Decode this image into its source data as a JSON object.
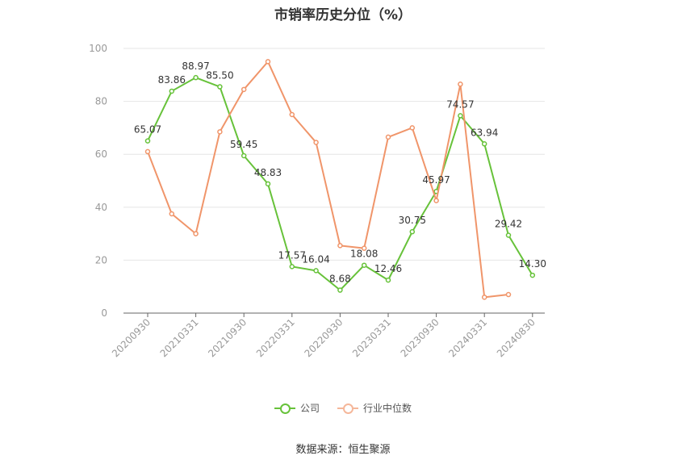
{
  "chart_data": {
    "type": "line",
    "title": "市销率历史分位（%）",
    "ylim": [
      0,
      100
    ],
    "yticks": [
      0,
      20,
      40,
      60,
      80,
      100
    ],
    "x": [
      "20200930",
      "20201231",
      "20210331",
      "20210630",
      "20210930",
      "20211231",
      "20220331",
      "20220630",
      "20220930",
      "20221231",
      "20230331",
      "20230630",
      "20230930",
      "20231231",
      "20240331",
      "20240630",
      "20240830"
    ],
    "xtick_labels": [
      "20200930",
      "20210331",
      "20210930",
      "20220331",
      "20220930",
      "20230331",
      "20230930",
      "20240331",
      "20240830"
    ],
    "series": [
      {
        "name": "公司",
        "color": "#67c23a",
        "values": [
          65.07,
          83.86,
          88.97,
          85.5,
          59.45,
          48.83,
          17.57,
          16.04,
          8.68,
          18.08,
          12.46,
          30.75,
          45.97,
          74.57,
          63.94,
          29.42,
          14.3
        ],
        "labels": [
          "65.07",
          "83.86",
          "88.97",
          "85.50",
          "59.45",
          "48.83",
          "17.57",
          "16.04",
          "8.68",
          "18.08",
          "12.46",
          "30.75",
          "45.97",
          "74.57",
          "63.94",
          "29.42",
          "14.30"
        ]
      },
      {
        "name": "行业中位数",
        "color": "#f0956a",
        "values": [
          61,
          37.5,
          30,
          68.5,
          84.5,
          95,
          75,
          64.5,
          25.5,
          24.5,
          66.5,
          70,
          42.5,
          86.5,
          6,
          7,
          null
        ]
      }
    ],
    "grid": true,
    "legend_position": "bottom"
  },
  "legend": {
    "company": "公司",
    "industry": "行业中位数"
  },
  "source": "数据来源：恒生聚源"
}
